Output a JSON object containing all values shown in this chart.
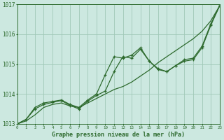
{
  "title": "Graphe pression niveau de la mer (hPa)",
  "bg_color": "#cce8e0",
  "plot_bg_color": "#cce8e0",
  "line_color": "#2d6a2d",
  "grid_color": "#a0c8b8",
  "xlim": [
    0,
    23
  ],
  "ylim": [
    1013,
    1017
  ],
  "yticks": [
    1013,
    1014,
    1015,
    1016,
    1017
  ],
  "xticks": [
    0,
    1,
    2,
    3,
    4,
    5,
    6,
    7,
    8,
    9,
    10,
    11,
    12,
    13,
    14,
    15,
    16,
    17,
    18,
    19,
    20,
    21,
    22,
    23
  ],
  "smooth_x": [
    0,
    1,
    2,
    3,
    4,
    5,
    6,
    7,
    8,
    9,
    10,
    11,
    12,
    13,
    14,
    15,
    16,
    17,
    18,
    19,
    20,
    21,
    22,
    23
  ],
  "smooth_y": [
    1013.0,
    1013.1,
    1013.3,
    1013.55,
    1013.65,
    1013.7,
    1013.6,
    1013.55,
    1013.7,
    1013.85,
    1014.0,
    1014.15,
    1014.25,
    1014.4,
    1014.6,
    1014.8,
    1015.05,
    1015.25,
    1015.45,
    1015.65,
    1015.85,
    1016.1,
    1016.45,
    1016.95
  ],
  "line2_x": [
    0,
    1,
    2,
    3,
    4,
    5,
    6,
    7,
    8,
    9,
    10,
    11,
    12,
    13,
    14,
    15,
    16,
    17,
    18,
    19,
    20,
    21,
    22,
    23
  ],
  "line2_y": [
    1013.0,
    1013.15,
    1013.55,
    1013.7,
    1013.75,
    1013.8,
    1013.65,
    1013.55,
    1013.8,
    1014.0,
    1014.65,
    1015.25,
    1015.2,
    1015.3,
    1015.55,
    1015.1,
    1014.85,
    1014.75,
    1014.95,
    1015.15,
    1015.2,
    1015.6,
    1016.35,
    1016.95
  ],
  "line3_x": [
    0,
    1,
    2,
    3,
    4,
    5,
    6,
    7,
    8,
    9,
    10,
    11,
    12,
    13,
    14,
    15,
    16,
    17,
    18,
    19,
    20,
    21,
    22,
    23
  ],
  "line3_y": [
    1013.0,
    1013.15,
    1013.5,
    1013.65,
    1013.72,
    1013.78,
    1013.62,
    1013.5,
    1013.76,
    1013.95,
    1014.1,
    1014.75,
    1015.25,
    1015.2,
    1015.5,
    1015.1,
    1014.82,
    1014.75,
    1014.95,
    1015.1,
    1015.15,
    1015.55,
    1016.3,
    1016.95
  ]
}
